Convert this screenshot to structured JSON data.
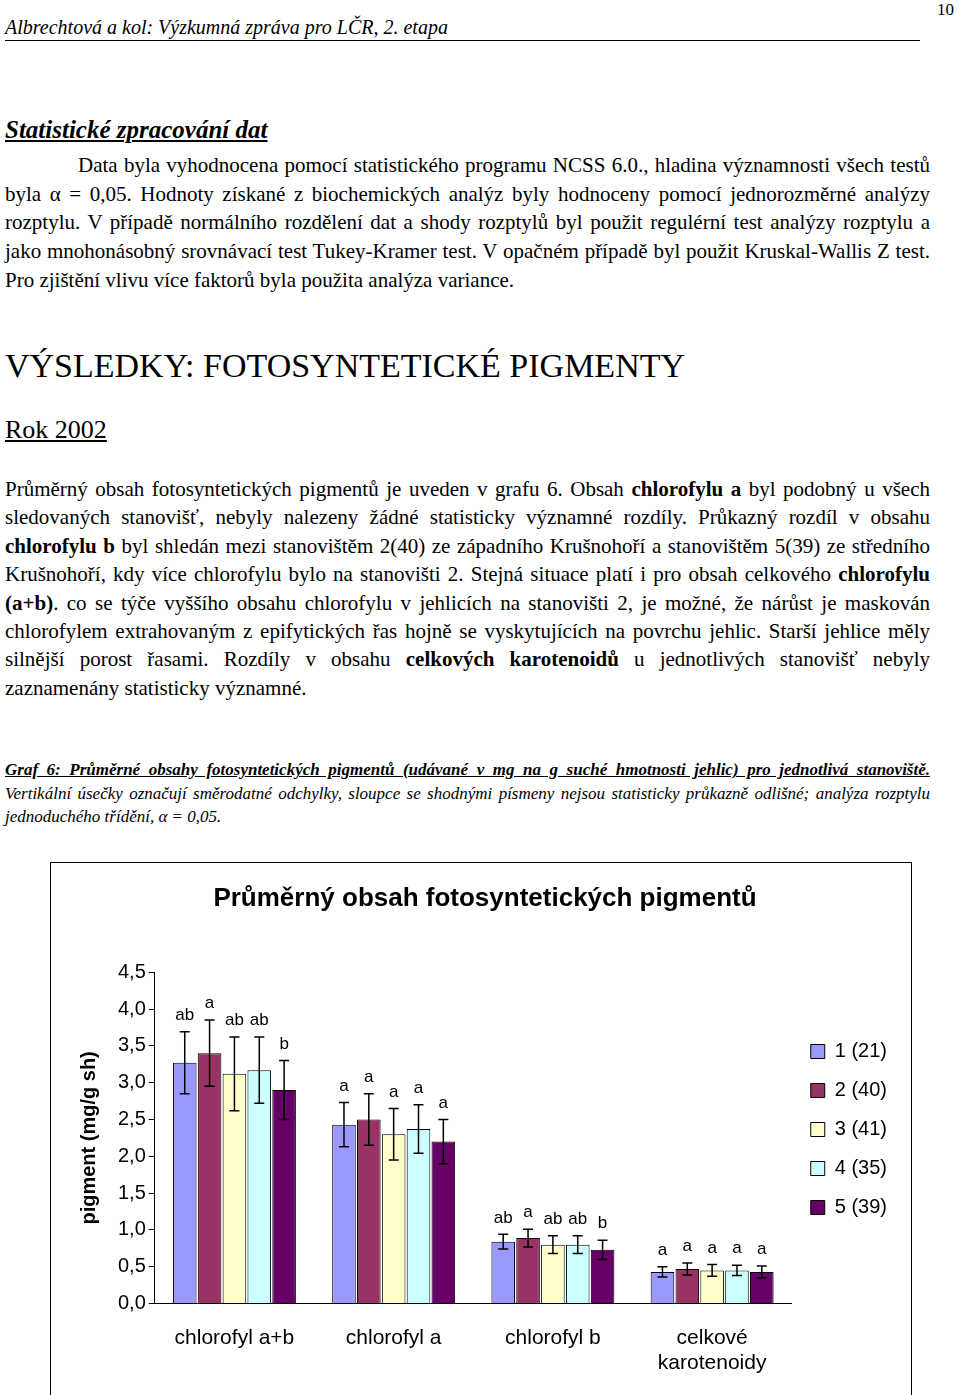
{
  "header": {
    "left": "Albrechtová a kol: Výzkumná zpráva pro LČR, 2. etapa",
    "page": "10"
  },
  "method_heading": "Statistické zpracování dat",
  "method_text": "Data byla vyhodnocena pomocí statistického programu NCSS 6.0., hladina významnosti všech testů byla α = 0,05. Hodnoty získané z biochemických analýz byly hodnoceny pomocí jednorozměrné analýzy rozptylu. V případě normálního rozdělení dat a shody rozptylů byl použit regulérní test analýzy rozptylu a jako mnohonásobný srovnávací test Tukey-Kramer test. V opačném případě byl použit Kruskal-Wallis Z test. Pro zjištění vlivu více faktorů byla použita analýza variance.",
  "results_heading": "VÝSLEDKY: FOTOSYNTETICKÉ PIGMENTY",
  "year_heading": "Rok 2002",
  "results_text": [
    {
      "text": "Průměrný obsah fotosyntetických pigmentů je uveden v grafu 6. Obsah ",
      "bold": false
    },
    {
      "text": "chlorofylu a",
      "bold": true
    },
    {
      "text": " byl podobný u všech sledovaných stanovišť, nebyly nalezeny žádné statisticky významné rozdíly. Průkazný rozdíl v obsahu ",
      "bold": false
    },
    {
      "text": "chlorofylu b",
      "bold": true
    },
    {
      "text": " byl shledán mezi stanovištěm 2(40) ze západního Krušnohoří a stanovištěm 5(39) ze středního Krušnohoří, kdy více chlorofylu bylo na stanovišti 2. Stejná situace platí i pro obsah celkového ",
      "bold": false
    },
    {
      "text": "chlorofylu (a+b)",
      "bold": true
    },
    {
      "text": ". co se týče vyššího obsahu chlorofylu v jehlicích na stanovišti 2, je možné, že nárůst je maskován chlorofylem extrahovaným z epifytických řas hojně se vyskytujících na povrchu jehlic. Starší jehlice měly silnější porost řasami. Rozdíly v obsahu ",
      "bold": false
    },
    {
      "text": "celkových karotenoidů",
      "bold": true
    },
    {
      "text": " u jednotlivých stanovišť nebyly zaznamenány statisticky významné.",
      "bold": false
    }
  ],
  "caption": {
    "bold": "Graf 6: Průměrné obsahy fotosyntetických pigmentů (udávané v mg na g suché hmotnosti jehlic) pro jednotlivá stanoviště.",
    "rest": " Vertikální úsečky označují směrodatné odchylky, sloupce se shodnými písmeny nejsou statisticky průkazně odlišné; analýza rozptylu jednoduchého třídění, α = 0,05."
  },
  "chart_data": {
    "type": "bar",
    "title": "Průměrný obsah fotosyntetických pigmentů",
    "y_label": "pigment (mg/g sh)",
    "categories": [
      "chlorofyl a+b",
      "chlorofyl a",
      "chlorofyl b",
      [
        "celkové",
        "karotenoidy"
      ]
    ],
    "series": [
      {
        "name": "1 (21)",
        "color": "#9999ff",
        "values": [
          3.27,
          2.43,
          0.84,
          0.43
        ],
        "errors": [
          0.42,
          0.3,
          0.1,
          0.07
        ],
        "letters": [
          "ab",
          "a",
          "ab",
          "a"
        ]
      },
      {
        "name": "2 (40)",
        "color": "#993366",
        "values": [
          3.4,
          2.5,
          0.89,
          0.47
        ],
        "errors": [
          0.45,
          0.35,
          0.12,
          0.08
        ],
        "letters": [
          "a",
          "a",
          "a",
          "a"
        ]
      },
      {
        "name": "3 (41)",
        "color": "#ffffcc",
        "values": [
          3.12,
          2.3,
          0.8,
          0.45
        ],
        "errors": [
          0.5,
          0.35,
          0.12,
          0.08
        ],
        "letters": [
          "ab",
          "a",
          "ab",
          "a"
        ]
      },
      {
        "name": "4 (35)",
        "color": "#ccffff",
        "values": [
          3.17,
          2.37,
          0.8,
          0.45
        ],
        "errors": [
          0.45,
          0.33,
          0.12,
          0.07
        ],
        "letters": [
          "ab",
          "a",
          "ab",
          "a"
        ]
      },
      {
        "name": "5 (39)",
        "color": "#660066",
        "values": [
          2.9,
          2.2,
          0.73,
          0.43
        ],
        "errors": [
          0.4,
          0.3,
          0.13,
          0.08
        ],
        "letters": [
          "b",
          "a",
          "b",
          "a"
        ]
      }
    ],
    "ylim": [
      0,
      4.5
    ],
    "yticks": [
      {
        "value": 0,
        "label": "0,0"
      },
      {
        "value": 0.5,
        "label": "0,5"
      },
      {
        "value": 1,
        "label": "1,0"
      },
      {
        "value": 1.5,
        "label": "1,5"
      },
      {
        "value": 2,
        "label": "2,0"
      },
      {
        "value": 2.5,
        "label": "2,5"
      },
      {
        "value": 3,
        "label": "3,0"
      },
      {
        "value": 3.5,
        "label": "3,5"
      },
      {
        "value": 4,
        "label": "4,0"
      },
      {
        "value": 4.5,
        "label": "4,5"
      }
    ],
    "grid": false,
    "legend": "right"
  }
}
